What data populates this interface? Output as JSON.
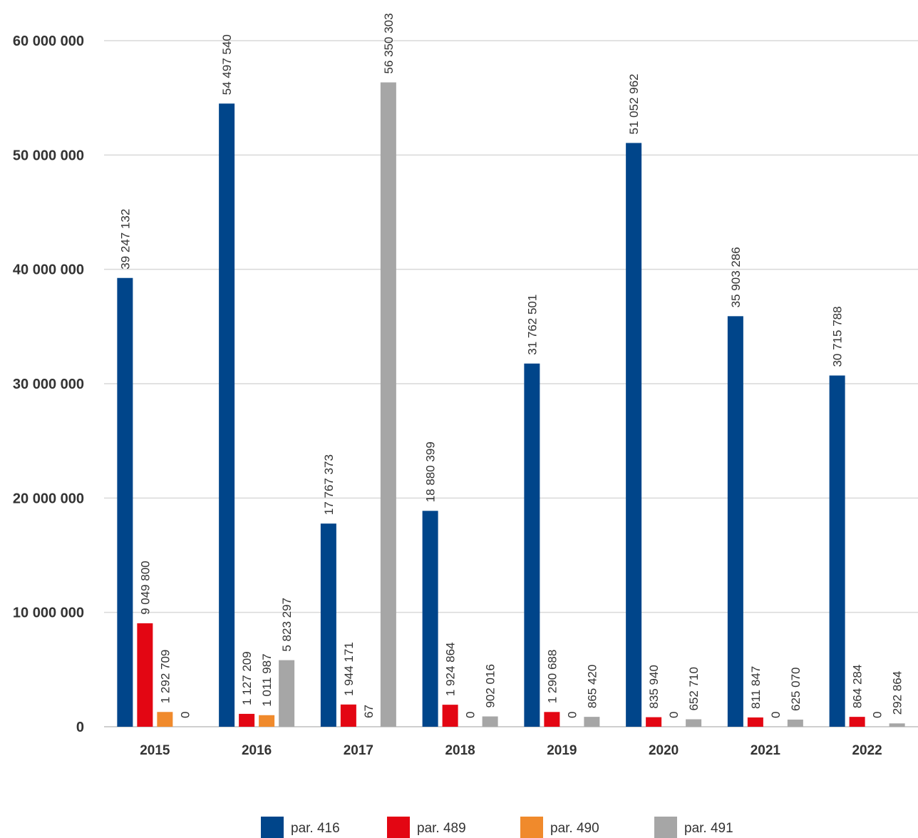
{
  "chart_data": {
    "type": "bar",
    "title": "",
    "xlabel": "",
    "ylabel": "",
    "ylim": [
      0,
      60000000
    ],
    "yticks": [
      0,
      10000000,
      20000000,
      30000000,
      40000000,
      50000000,
      60000000
    ],
    "ytick_labels": [
      "0",
      "10 000 000",
      "20 000 000",
      "30 000 000",
      "40 000 000",
      "50 000 000",
      "60 000 000"
    ],
    "grid": true,
    "legend_position": "bottom",
    "categories": [
      "2015",
      "2016",
      "2017",
      "2018",
      "2019",
      "2020",
      "2021",
      "2022"
    ],
    "series": [
      {
        "name": "par. 416",
        "color": "#00458a",
        "values": [
          39247132,
          54497540,
          17767373,
          18880399,
          31762501,
          51052962,
          35903286,
          30715788
        ],
        "labels": [
          "39 247 132",
          "54 497 540",
          "17 767 373",
          "18 880 399",
          "31 762 501",
          "51 052 962",
          "35 903 286",
          "30 715 788"
        ]
      },
      {
        "name": "par. 489",
        "color": "#e30613",
        "values": [
          9049800,
          1127209,
          1944171,
          1924864,
          1290688,
          835940,
          811847,
          864284
        ],
        "labels": [
          "9 049 800",
          "1 127 209",
          "1 944 171",
          "1 924 864",
          "1 290 688",
          "835 940",
          "811 847",
          "864 284"
        ]
      },
      {
        "name": "par. 490",
        "color": "#f08a2c",
        "values": [
          1292709,
          1011987,
          67,
          0,
          0,
          0,
          0,
          0
        ],
        "labels": [
          "1 292 709",
          "1 011 987",
          "67",
          "0",
          "0",
          "0",
          "0",
          "0"
        ]
      },
      {
        "name": "par. 491",
        "color": "#a6a6a6",
        "values": [
          0,
          5823297,
          56350303,
          902016,
          865420,
          652710,
          625070,
          292864
        ],
        "labels": [
          "0",
          "5 823 297",
          "56 350 303",
          "902 016",
          "865 420",
          "652 710",
          "625 070",
          "292 864"
        ]
      }
    ]
  }
}
